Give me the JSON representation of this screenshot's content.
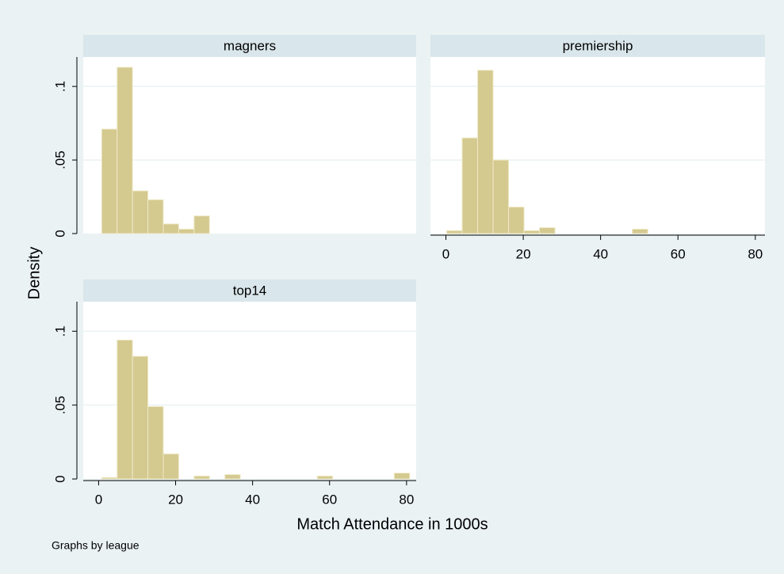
{
  "chart_data": [
    {
      "type": "histogram",
      "title": "magners",
      "bins": [
        0.8,
        4.8,
        8.8,
        12.8,
        16.8,
        20.8,
        24.8,
        28.8
      ],
      "values": [
        0.071,
        0.113,
        0.029,
        0.023,
        0.0065,
        0.003,
        0.012
      ],
      "color": "#d4c98f",
      "xlim": [
        -4,
        82.5
      ],
      "ylim": [
        0,
        0.12
      ],
      "yticks": [
        0,
        {
          "value": 0.05,
          "label": ".05"
        },
        {
          "value": 0.1,
          "label": ".1"
        }
      ],
      "grid": true
    },
    {
      "type": "histogram",
      "title": "premiership",
      "bins": [
        0.2,
        4.2,
        8.2,
        12.2,
        16.2,
        20.2,
        24.2,
        28.2,
        32.2,
        36.2,
        40.2,
        44.2,
        48.2,
        52.2
      ],
      "values": [
        0.002,
        0.065,
        0.111,
        0.05,
        0.018,
        0.002,
        0.004,
        0,
        0,
        0,
        0,
        0,
        0.003
      ],
      "color": "#d4c98f",
      "xlim": [
        -4,
        82.5
      ],
      "ylim": [
        0,
        0.12
      ],
      "xticks": [
        0,
        20,
        40,
        60,
        80
      ],
      "yticks": [
        0,
        {
          "value": 0.05,
          "label": ".05"
        },
        {
          "value": 0.1,
          "label": ".1"
        }
      ],
      "grid": true
    },
    {
      "type": "histogram",
      "title": "top14",
      "bins": [
        0.8,
        4.8,
        8.8,
        12.8,
        16.8,
        20.8,
        24.8,
        28.8,
        32.8,
        36.8,
        40.8,
        44.8,
        48.8,
        52.8,
        56.8,
        60.8,
        64.8,
        68.8,
        72.8,
        76.8,
        80.8
      ],
      "values": [
        0.001,
        0.094,
        0.083,
        0.049,
        0.017,
        0,
        0.002,
        0,
        0.003,
        0,
        0,
        0,
        0,
        0,
        0.002,
        0,
        0,
        0,
        0,
        0.004
      ],
      "color": "#d4c98f",
      "xlim": [
        -4,
        82.5
      ],
      "ylim": [
        0,
        0.12
      ],
      "xticks": [
        0,
        20,
        40,
        60,
        80
      ],
      "yticks": [
        0,
        {
          "value": 0.05,
          "label": ".05"
        },
        {
          "value": 0.1,
          "label": ".1"
        }
      ],
      "grid": true
    }
  ],
  "ylabel": "Density",
  "xlabel": "Match Attendance in 1000s",
  "note": "Graphs by league"
}
